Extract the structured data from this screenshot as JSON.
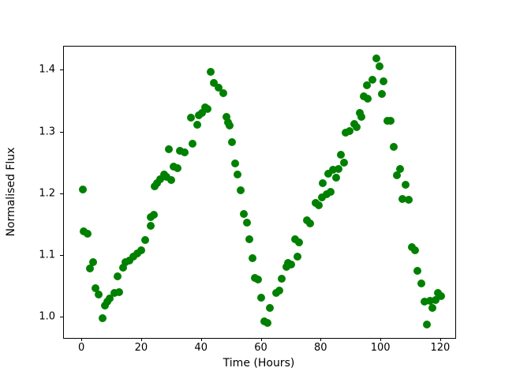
{
  "figure": {
    "background": "#ffffff",
    "xlabel": "Time (Hours)",
    "ylabel": "Normalised Flux"
  },
  "chart_data": {
    "type": "scatter",
    "title": "",
    "xlabel": "Time (Hours)",
    "ylabel": "Normalised Flux",
    "marker_color": "#008000",
    "marker_diameter_px": 10,
    "grid": false,
    "legend": null,
    "xlim": [
      -6.1,
      125.3
    ],
    "ylim": [
      0.964,
      1.439
    ],
    "xtick_values": [
      0,
      20,
      40,
      60,
      80,
      100,
      120
    ],
    "xtick_labels": [
      "0",
      "20",
      "40",
      "60",
      "80",
      "100",
      "120"
    ],
    "ytick_values": [
      1.0,
      1.1,
      1.2,
      1.3,
      1.4
    ],
    "ytick_labels": [
      "1.0",
      "1.1",
      "1.2",
      "1.3",
      "1.4"
    ],
    "x": [
      0.2,
      0.6,
      1.9,
      2.7,
      3.6,
      4.5,
      5.6,
      6.8,
      7.6,
      8.4,
      9.3,
      10.7,
      11.8,
      12.3,
      13.6,
      14.5,
      15.9,
      17.2,
      18.5,
      19.7,
      21.0,
      22.8,
      22.9,
      24.0,
      24.2,
      25.0,
      26.1,
      27.4,
      28.3,
      29.1,
      29.9,
      30.6,
      31.9,
      32.8,
      34.2,
      36.3,
      37.0,
      38.6,
      38.9,
      40.0,
      41.1,
      42.0,
      42.9,
      44.1,
      45.6,
      47.1,
      48.2,
      48.7,
      49.4,
      50.1,
      51.1,
      52.0,
      53.1,
      54.1,
      55.1,
      55.8,
      57.0,
      57.7,
      58.7,
      59.9,
      60.8,
      61.9,
      62.8,
      64.8,
      66.0,
      66.8,
      68.2,
      68.9,
      70.0,
      71.2,
      72.1,
      72.6,
      75.1,
      76.3,
      78.0,
      79.1,
      80.3,
      80.4,
      81.8,
      82.2,
      83.1,
      84.0,
      84.9,
      85.6,
      86.6,
      87.5,
      88.2,
      89.3,
      90.9,
      91.7,
      92.8,
      93.5,
      94.1,
      95.3,
      95.6,
      97.0,
      98.4,
      99.4,
      100.3,
      100.7,
      102.1,
      103.2,
      104.1,
      105.2,
      106.2,
      107.1,
      108.2,
      109.1,
      110.3,
      111.3,
      112.0,
      113.4,
      114.6,
      115.3,
      116.4,
      117.1,
      118.1,
      118.9,
      119.9
    ],
    "y": [
      1.207,
      1.139,
      1.136,
      1.079,
      1.09,
      1.047,
      1.037,
      0.998,
      1.019,
      1.025,
      1.03,
      1.039,
      1.066,
      1.041,
      1.081,
      1.09,
      1.092,
      1.098,
      1.104,
      1.109,
      1.125,
      1.163,
      1.149,
      1.166,
      1.213,
      1.218,
      1.224,
      1.231,
      1.228,
      1.273,
      1.223,
      1.245,
      1.242,
      1.27,
      1.268,
      1.324,
      1.281,
      1.312,
      1.328,
      1.331,
      1.341,
      1.338,
      1.398,
      1.38,
      1.373,
      1.363,
      1.325,
      1.316,
      1.311,
      1.284,
      1.25,
      1.232,
      1.206,
      1.167,
      1.153,
      1.127,
      1.096,
      1.064,
      1.061,
      1.032,
      0.993,
      0.991,
      1.015,
      1.039,
      1.044,
      1.063,
      1.082,
      1.088,
      1.086,
      1.126,
      1.098,
      1.121,
      1.157,
      1.152,
      1.185,
      1.182,
      1.195,
      1.218,
      1.2,
      1.233,
      1.204,
      1.239,
      1.227,
      1.241,
      1.263,
      1.251,
      1.299,
      1.302,
      1.313,
      1.309,
      1.331,
      1.325,
      1.358,
      1.376,
      1.355,
      1.385,
      1.42,
      1.407,
      1.362,
      1.383,
      1.319,
      1.319,
      1.276,
      1.23,
      1.24,
      1.192,
      1.215,
      1.19,
      1.114,
      1.109,
      1.075,
      1.055,
      1.026,
      0.988,
      1.027,
      1.015,
      1.028,
      1.04,
      1.035
    ]
  }
}
